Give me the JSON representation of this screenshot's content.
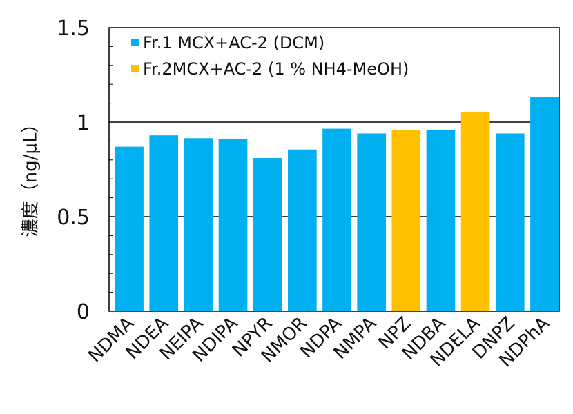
{
  "chart_data": {
    "type": "bar",
    "ylabel": "濃度（ng/μL）",
    "ylim": [
      0,
      1.5
    ],
    "yticks": [
      "0",
      "0.5",
      "1",
      "1.5"
    ],
    "grid": "horizontal major lines",
    "legend_position": "top-left",
    "categories": [
      "NDMA",
      "NDEA",
      "NEIPA",
      "NDIPA",
      "NPYR",
      "NMOR",
      "NDPA",
      "NMPA",
      "NPZ",
      "NDBA",
      "NDELA",
      "DNPZ",
      "NDPhA"
    ],
    "values": [
      0.87,
      0.93,
      0.915,
      0.91,
      0.81,
      0.855,
      0.965,
      0.94,
      0.96,
      0.96,
      1.055,
      0.94,
      1.135
    ],
    "fraction": [
      1,
      1,
      1,
      1,
      1,
      1,
      1,
      1,
      2,
      1,
      2,
      1,
      1
    ],
    "series": [
      {
        "name": "Fr.1 MCX+AC-2 (DCM)",
        "color": "#00b0f0"
      },
      {
        "name": "Fr.2MCX+AC-2 (1 % NH4-MeOH)",
        "color": "#ffc000"
      }
    ]
  }
}
